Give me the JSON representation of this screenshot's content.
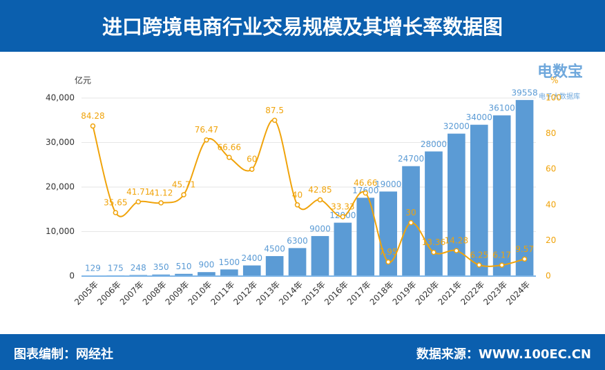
{
  "header": {
    "title": "进口跨境电商行业交易规模及其增长率数据图"
  },
  "logo": {
    "name": "电数宝",
    "tagline": "电子大数据库"
  },
  "footer": {
    "left": "图表编制：网经社",
    "right": "数据来源：WWW.100EC.CN"
  },
  "chart_data": {
    "type": "bar-line",
    "y_label": "亿元",
    "y2_label": "%",
    "categories": [
      "2005年",
      "2006年",
      "2007年",
      "2008年",
      "2009年",
      "2010年",
      "2011年",
      "2012年",
      "2013年",
      "2014年",
      "2015年",
      "2016年",
      "2017年",
      "2018年",
      "2019年",
      "2020年",
      "2021年",
      "2022年",
      "2023年",
      "2024年"
    ],
    "series": [
      {
        "type": "bar",
        "color": "#5b9bd5",
        "values": [
          129,
          175,
          248,
          350,
          510,
          900,
          1500,
          2400,
          4500,
          6300,
          9000,
          12000,
          17600,
          19000,
          24700,
          28000,
          32000,
          34000,
          36100,
          39558
        ]
      },
      {
        "type": "line",
        "color": "#f0a30a",
        "axis": "y2",
        "values": [
          84.28,
          35.65,
          41.71,
          41.12,
          45.71,
          76.47,
          66.66,
          60,
          87.5,
          40,
          42.85,
          33.33,
          46.66,
          7.95,
          30,
          13.36,
          14.28,
          6.25,
          6.17,
          9.57
        ]
      }
    ],
    "ylim": [
      0,
      40000
    ],
    "yticks": [
      0,
      {
        "value": 10000,
        "label": "10,000"
      },
      {
        "value": 20000,
        "label": "20,000"
      },
      {
        "value": 30000,
        "label": "30,000"
      },
      {
        "value": 40000,
        "label": "40,000"
      }
    ],
    "y2lim": [
      0,
      100
    ],
    "y2ticks": [
      0,
      20,
      40,
      60,
      80,
      100
    ],
    "grid": true
  }
}
